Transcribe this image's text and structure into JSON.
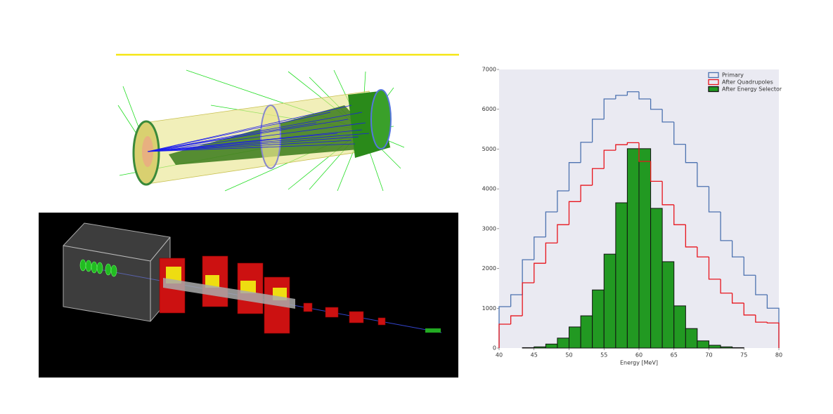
{
  "chart_data": {
    "type": "histogram",
    "x_label": "Energy [MeV]",
    "bins": [
      40,
      41.67,
      43.33,
      45,
      46.67,
      48.33,
      50,
      51.67,
      53.33,
      55,
      56.67,
      58.33,
      60,
      61.67,
      63.33,
      65,
      66.67,
      68.33,
      70,
      71.67,
      73.33,
      75,
      76.67,
      78.33,
      80
    ],
    "series": [
      {
        "name": "Primary",
        "color": "#4c72b0",
        "histtype": "step",
        "values": [
          1040,
          1340,
          2220,
          2790,
          3420,
          3950,
          4660,
          5170,
          5750,
          6260,
          6350,
          6440,
          6260,
          6000,
          5680,
          5120,
          4660,
          4060,
          3420,
          2700,
          2290,
          1830,
          1340,
          1000
        ]
      },
      {
        "name": "After Quadrupoles",
        "color": "#e8141c",
        "histtype": "step",
        "values": [
          600,
          810,
          1640,
          2130,
          2640,
          3100,
          3680,
          4090,
          4510,
          4970,
          5110,
          5160,
          4690,
          4190,
          3600,
          3100,
          2540,
          2290,
          1730,
          1380,
          1130,
          830,
          650,
          630
        ]
      },
      {
        "name": "After Energy Selector",
        "color": "#229922",
        "histtype": "stepfilled",
        "values": [
          0,
          0,
          10,
          30,
          100,
          250,
          530,
          810,
          1460,
          2360,
          3650,
          5010,
          5010,
          3510,
          2170,
          1060,
          490,
          180,
          70,
          30,
          10,
          0,
          0,
          0
        ]
      }
    ],
    "xlim": [
      40,
      80
    ],
    "xticks": [
      40,
      45,
      50,
      55,
      60,
      65,
      70,
      75,
      80
    ],
    "ylim": [
      0,
      7000
    ],
    "yticks": [
      0,
      1000,
      2000,
      3000,
      4000,
      5000,
      6000,
      7000
    ],
    "legend": "upper right",
    "background": "#eaeaf2"
  }
}
